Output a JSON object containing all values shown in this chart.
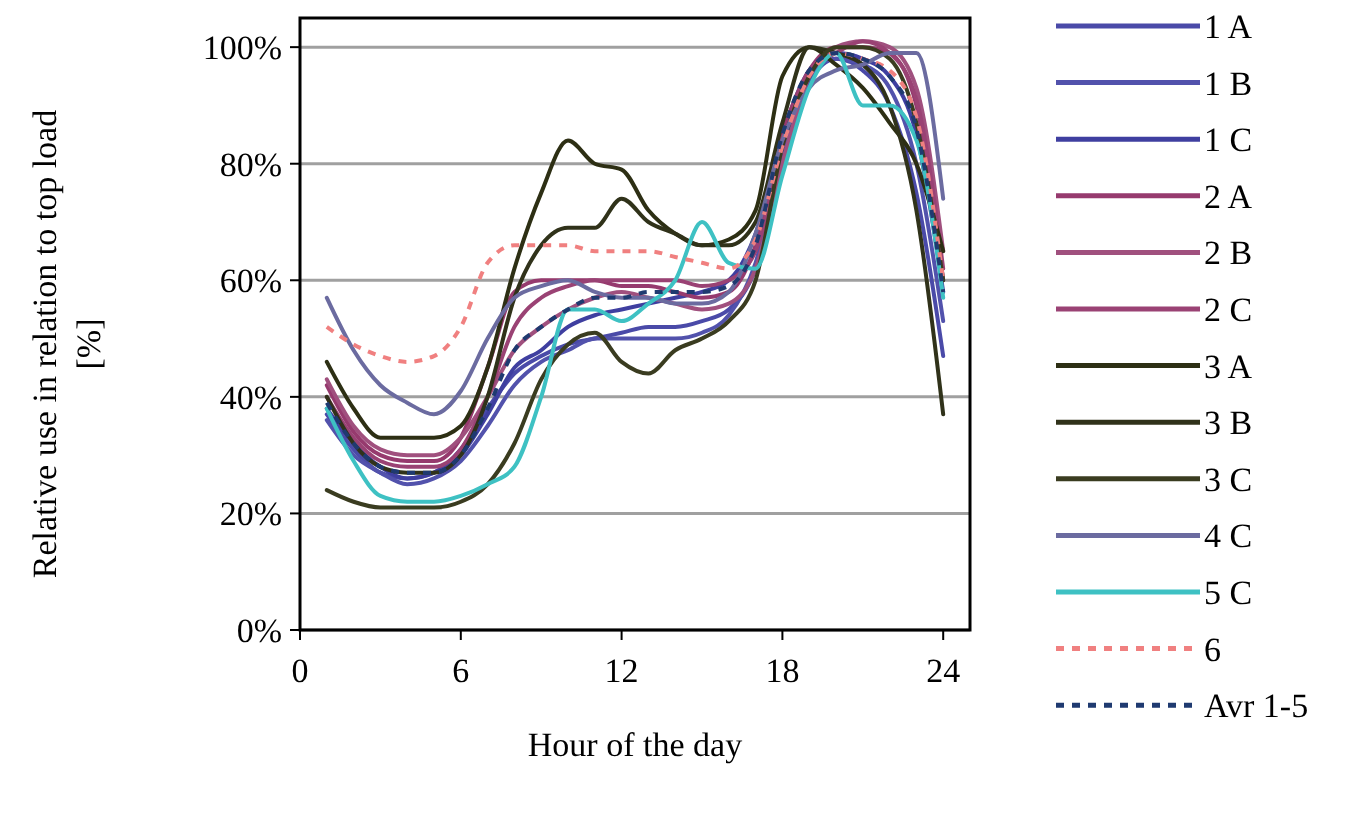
{
  "chart_data": {
    "type": "line",
    "xlabel": "Hour of the day",
    "ylabel": "Relative use in relation to top load [%]",
    "xlim": [
      0,
      25
    ],
    "xticks": [
      0,
      6,
      12,
      18,
      24
    ],
    "ylim": [
      0,
      105
    ],
    "yticks": [
      {
        "value": 0,
        "label": "0%"
      },
      {
        "value": 20,
        "label": "20%"
      },
      {
        "value": 40,
        "label": "40%"
      },
      {
        "value": 60,
        "label": "60%"
      },
      {
        "value": 80,
        "label": "80%"
      },
      {
        "value": 100,
        "label": "100%"
      }
    ],
    "grid": "y",
    "legend": "right",
    "x": [
      1,
      2,
      3,
      4,
      5,
      6,
      7,
      8,
      9,
      10,
      11,
      12,
      13,
      14,
      15,
      16,
      17,
      18,
      19,
      20,
      21,
      22,
      23,
      24
    ],
    "series": [
      {
        "name": "1 A",
        "color": "#4a4aa8",
        "line_style": "solid",
        "values": [
          37,
          31,
          27,
          26,
          27,
          31,
          38,
          44,
          47,
          49,
          50,
          51,
          52,
          52,
          53,
          55,
          62,
          80,
          94,
          98,
          96,
          90,
          75,
          47
        ]
      },
      {
        "name": "1 B",
        "color": "#5252ac",
        "line_style": "solid",
        "values": [
          36,
          30,
          27,
          25,
          26,
          29,
          35,
          42,
          46,
          48,
          50,
          50,
          50,
          50,
          51,
          54,
          63,
          82,
          95,
          98,
          97,
          93,
          80,
          53
        ]
      },
      {
        "name": "1 C",
        "color": "#3f3fa0",
        "line_style": "solid",
        "values": [
          38,
          32,
          28,
          26,
          27,
          30,
          37,
          45,
          48,
          52,
          54,
          55,
          56,
          57,
          58,
          60,
          68,
          85,
          96,
          99,
          98,
          95,
          85,
          58
        ]
      },
      {
        "name": "2 A",
        "color": "#963a6e",
        "line_style": "solid",
        "values": [
          42,
          34,
          30,
          29,
          29,
          33,
          45,
          58,
          60,
          60,
          60,
          59,
          59,
          58,
          57,
          58,
          66,
          85,
          96,
          100,
          100,
          99,
          90,
          60
        ]
      },
      {
        "name": "2 B",
        "color": "#a0507e",
        "line_style": "solid",
        "values": [
          43,
          35,
          31,
          30,
          30,
          33,
          40,
          48,
          52,
          55,
          57,
          58,
          57,
          56,
          55,
          56,
          62,
          80,
          95,
          100,
          101,
          100,
          93,
          65
        ]
      },
      {
        "name": "2 C",
        "color": "#9a4274",
        "line_style": "solid",
        "values": [
          40,
          33,
          29,
          28,
          28,
          31,
          40,
          52,
          57,
          59,
          60,
          60,
          60,
          60,
          59,
          60,
          65,
          83,
          96,
          99,
          101,
          99,
          91,
          62
        ]
      },
      {
        "name": "3 A",
        "color": "#2d2f14",
        "line_style": "solid",
        "values": [
          46,
          38,
          33,
          33,
          33,
          35,
          45,
          62,
          75,
          84,
          80,
          79,
          72,
          68,
          66,
          67,
          72,
          95,
          100,
          97,
          93,
          87,
          80,
          65
        ]
      },
      {
        "name": "3 B",
        "color": "#30321a",
        "line_style": "solid",
        "values": [
          40,
          32,
          28,
          27,
          27,
          30,
          40,
          57,
          66,
          69,
          69,
          74,
          70,
          68,
          66,
          66,
          70,
          87,
          100,
          99,
          97,
          90,
          72,
          37
        ]
      },
      {
        "name": "3 C",
        "color": "#3a3c20",
        "line_style": "solid",
        "values": [
          24,
          22,
          21,
          21,
          21,
          22,
          25,
          32,
          43,
          49,
          51,
          46,
          44,
          48,
          50,
          53,
          60,
          83,
          95,
          100,
          100,
          98,
          87,
          60
        ]
      },
      {
        "name": "4 C",
        "color": "#6b6ba0",
        "line_style": "solid",
        "values": [
          57,
          48,
          42,
          39,
          37,
          41,
          50,
          57,
          59,
          60,
          58,
          57,
          57,
          56,
          56,
          58,
          68,
          84,
          93,
          96,
          97,
          99,
          99,
          74
        ]
      },
      {
        "name": "5 C",
        "color": "#3ec1c3",
        "line_style": "solid",
        "values": [
          38,
          29,
          23,
          22,
          22,
          23,
          25,
          28,
          40,
          55,
          55,
          53,
          56,
          60,
          70,
          63,
          62,
          78,
          93,
          99,
          90,
          90,
          84,
          57
        ]
      },
      {
        "name": "6",
        "color": "#f08080",
        "line_style": "dotted",
        "values": [
          52,
          49,
          47,
          46,
          47,
          52,
          63,
          66,
          66,
          66,
          65,
          65,
          65,
          64,
          63,
          62,
          67,
          83,
          95,
          99,
          98,
          96,
          88,
          60
        ]
      },
      {
        "name": "Avr 1-5",
        "color": "#1f3a70",
        "line_style": "dotted",
        "values": [
          39,
          32,
          28,
          27,
          27,
          30,
          38,
          48,
          52,
          55,
          57,
          57,
          58,
          58,
          58,
          59,
          66,
          85,
          96,
          99,
          98,
          95,
          86,
          58
        ]
      }
    ]
  }
}
